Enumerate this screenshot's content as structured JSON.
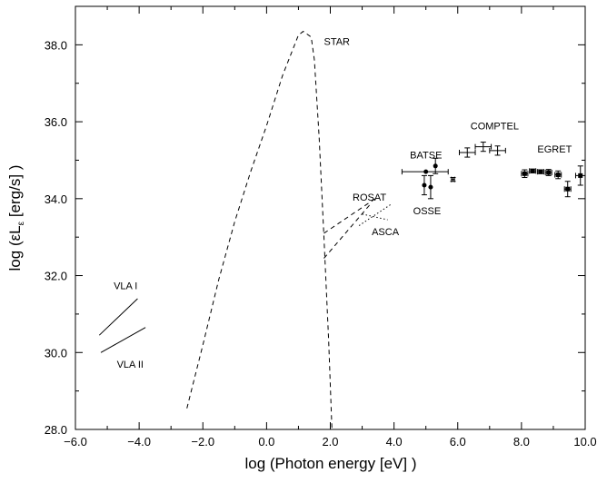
{
  "chart_data": {
    "type": "scatter",
    "title": "",
    "xlabel": "log (Photon energy [eV] )",
    "ylabel": "log (εLε [erg/s] )",
    "xlim": [
      -6.0,
      10.0
    ],
    "ylim": [
      28.0,
      39.0
    ],
    "x_ticks": [
      -6.0,
      -4.0,
      -2.0,
      0.0,
      2.0,
      4.0,
      6.0,
      8.0,
      10.0
    ],
    "x_tick_labels": [
      "−6.0",
      "−4.0",
      "−2.0",
      "0.0",
      "2.0",
      "4.0",
      "6.0",
      "8.0",
      "10.0"
    ],
    "y_ticks": [
      28.0,
      30.0,
      32.0,
      34.0,
      36.0,
      38.0
    ],
    "y_tick_labels": [
      "28.0",
      "30.0",
      "32.0",
      "34.0",
      "36.0",
      "38.0"
    ],
    "grid": false,
    "series": [
      {
        "name": "STAR",
        "style": "dashed",
        "points": [
          [
            -2.5,
            28.55
          ],
          [
            -2.0,
            30.2
          ],
          [
            -1.5,
            31.9
          ],
          [
            -1.0,
            33.4
          ],
          [
            -0.5,
            34.7
          ],
          [
            0.0,
            35.9
          ],
          [
            0.5,
            37.2
          ],
          [
            1.0,
            38.25
          ],
          [
            1.15,
            38.35
          ],
          [
            1.4,
            38.2
          ],
          [
            1.5,
            37.6
          ],
          [
            1.65,
            35.6
          ],
          [
            1.8,
            33.0
          ],
          [
            1.95,
            30.3
          ],
          [
            2.05,
            28.0
          ]
        ]
      },
      {
        "name": "VLA I",
        "style": "solid",
        "points": [
          [
            -5.25,
            30.45
          ],
          [
            -4.05,
            31.4
          ]
        ]
      },
      {
        "name": "VLA II",
        "style": "solid",
        "points": [
          [
            -5.2,
            30.0
          ],
          [
            -3.8,
            30.65
          ]
        ]
      },
      {
        "name": "ROSAT",
        "style": "dashed",
        "segments": [
          [
            [
              1.8,
              33.1
            ],
            [
              3.5,
              34.05
            ]
          ],
          [
            [
              1.8,
              32.45
            ],
            [
              3.25,
              33.85
            ]
          ]
        ]
      },
      {
        "name": "ASCA",
        "style": "dotted",
        "segments": [
          [
            [
              3.0,
              33.6
            ],
            [
              3.8,
              33.45
            ]
          ],
          [
            [
              2.9,
              33.3
            ],
            [
              3.9,
              33.85
            ]
          ]
        ]
      },
      {
        "name": "BATSE",
        "marker": "filled-circle",
        "points": [
          {
            "x": 5.0,
            "y": 34.7,
            "xerr": [
              0.75,
              0.7
            ],
            "yerr": 0.0
          },
          {
            "x": 5.3,
            "y": 34.85,
            "yerr": 0.2
          }
        ]
      },
      {
        "name": "OSSE",
        "marker": "filled-circle",
        "points": [
          {
            "x": 4.95,
            "y": 34.35,
            "yerr": 0.25
          },
          {
            "x": 5.15,
            "y": 34.3,
            "yerr": 0.3
          }
        ]
      },
      {
        "name": "COMPTEL",
        "marker": "none",
        "points": [
          {
            "x": 6.3,
            "y": 35.2,
            "xerr": [
              0.25,
              0.25
            ],
            "yerr": 0.12
          },
          {
            "x": 6.8,
            "y": 35.35,
            "xerr": [
              0.25,
              0.25
            ],
            "yerr": 0.12
          },
          {
            "x": 7.25,
            "y": 35.25,
            "xerr": [
              0.25,
              0.25
            ],
            "yerr": 0.12
          },
          {
            "x": 5.85,
            "y": 34.5,
            "xerr": [
              0.05,
              0.05
            ],
            "yerr": 0.05
          }
        ]
      },
      {
        "name": "EGRET",
        "marker": "filled-square",
        "points": [
          {
            "x": 8.1,
            "y": 34.65,
            "xerr": [
              0.1,
              0.1
            ],
            "yerr": 0.1
          },
          {
            "x": 8.35,
            "y": 34.72,
            "xerr": [
              0.1,
              0.1
            ],
            "yerr": 0.05
          },
          {
            "x": 8.6,
            "y": 34.7,
            "xerr": [
              0.1,
              0.1
            ],
            "yerr": 0.05
          },
          {
            "x": 8.85,
            "y": 34.68,
            "xerr": [
              0.1,
              0.1
            ],
            "yerr": 0.08
          },
          {
            "x": 9.15,
            "y": 34.62,
            "xerr": [
              0.1,
              0.1
            ],
            "yerr": 0.1
          },
          {
            "x": 9.45,
            "y": 34.25,
            "xerr": [
              0.1,
              0.1
            ],
            "yerr": 0.2
          },
          {
            "x": 9.85,
            "y": 34.6,
            "xerr": [
              0.15,
              0.15
            ],
            "yerr": 0.25
          }
        ]
      }
    ],
    "annotations": [
      {
        "text": "STAR",
        "x": 1.8,
        "y": 38.0
      },
      {
        "text": "VLA I",
        "x": -4.8,
        "y": 31.65
      },
      {
        "text": "VLA II",
        "x": -4.7,
        "y": 29.6
      },
      {
        "text": "ROSAT",
        "x": 2.7,
        "y": 33.95
      },
      {
        "text": "ASCA",
        "x": 3.3,
        "y": 33.05
      },
      {
        "text": "BATSE",
        "x": 4.5,
        "y": 35.05
      },
      {
        "text": "OSSE",
        "x": 4.6,
        "y": 33.6
      },
      {
        "text": "COMPTEL",
        "x": 6.4,
        "y": 35.8
      },
      {
        "text": "EGRET",
        "x": 8.5,
        "y": 35.2
      }
    ]
  }
}
